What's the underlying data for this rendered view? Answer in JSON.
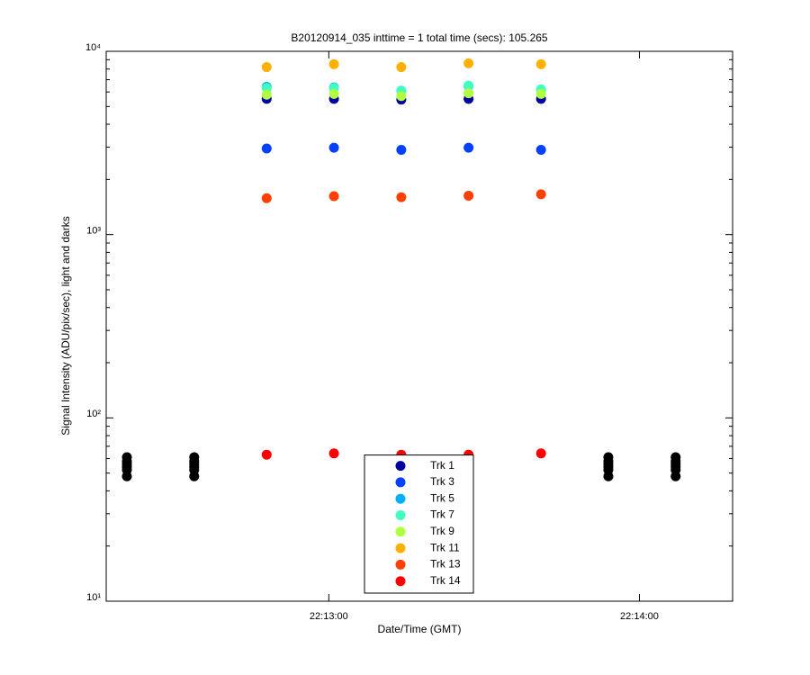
{
  "chart_data": {
    "type": "scatter",
    "title": "B20120914_035 inttime = 1 total time (secs): 105.265",
    "x_label": "Date/Time (GMT)",
    "y_label": "Signal Intensity (ADU/pix/sec), light and darks",
    "xlim": [
      "22:12:17",
      "22:14:18"
    ],
    "xticks": [
      "22:13:00",
      "22:14:00"
    ],
    "ylim": [
      10,
      10000
    ],
    "yticks": [
      {
        "value": 10,
        "label": "10¹"
      },
      {
        "value": 100,
        "label": "10²"
      },
      {
        "value": 1000,
        "label": "10³"
      },
      {
        "value": 10000,
        "label": "10⁴"
      }
    ],
    "log_y": true,
    "legend": "lower center",
    "series": [
      {
        "color": "#000000",
        "x": [
          "22:12:21",
          "22:12:21",
          "22:12:21",
          "22:12:21",
          "22:12:21",
          "22:12:21",
          "22:12:34",
          "22:12:34",
          "22:12:34",
          "22:12:34",
          "22:12:34",
          "22:12:34",
          "22:13:54",
          "22:13:54",
          "22:13:54",
          "22:13:54",
          "22:13:54",
          "22:13:54",
          "22:14:07",
          "22:14:07",
          "22:14:07",
          "22:14:07",
          "22:14:07",
          "22:14:07"
        ],
        "values": [
          61,
          58,
          56,
          54,
          52,
          48,
          61,
          58,
          56,
          54,
          52,
          48,
          61,
          58,
          56,
          54,
          52,
          48,
          61,
          58,
          56,
          54,
          52,
          48
        ]
      },
      {
        "name": "Trk 1",
        "color": "#0000a0",
        "x": [
          "22:12:48",
          "22:13:01",
          "22:13:14",
          "22:13:27",
          "22:13:41"
        ],
        "values": [
          5500,
          5500,
          5450,
          5500,
          5500
        ]
      },
      {
        "name": "Trk 3",
        "color": "#0040ff",
        "x": [
          "22:12:48",
          "22:13:01",
          "22:13:14",
          "22:13:27",
          "22:13:41"
        ],
        "values": [
          2950,
          2980,
          2900,
          2980,
          2900
        ]
      },
      {
        "name": "Trk 5",
        "color": "#00b0ff",
        "x": [
          "22:12:48",
          "22:13:01",
          "22:13:14",
          "22:13:27",
          "22:13:41"
        ],
        "values": [
          6400,
          6350,
          6100,
          6450,
          6150
        ]
      },
      {
        "name": "Trk 7",
        "color": "#40ffc0",
        "x": [
          "22:12:48",
          "22:13:01",
          "22:13:14",
          "22:13:27",
          "22:13:41"
        ],
        "values": [
          6300,
          6300,
          6100,
          6500,
          6200
        ]
      },
      {
        "name": "Trk 9",
        "color": "#b0ff40",
        "x": [
          "22:12:48",
          "22:13:01",
          "22:13:14",
          "22:13:27",
          "22:13:41"
        ],
        "values": [
          5800,
          5850,
          5700,
          5900,
          5850
        ]
      },
      {
        "name": "Trk 11",
        "color": "#ffb000",
        "x": [
          "22:12:48",
          "22:13:01",
          "22:13:14",
          "22:13:27",
          "22:13:41"
        ],
        "values": [
          8200,
          8500,
          8200,
          8600,
          8500
        ]
      },
      {
        "name": "Trk 13",
        "color": "#ff4000",
        "x": [
          "22:12:48",
          "22:13:01",
          "22:13:14",
          "22:13:27",
          "22:13:41"
        ],
        "values": [
          1580,
          1620,
          1600,
          1630,
          1660
        ]
      },
      {
        "name": "Trk 14",
        "color": "#ff0000",
        "x": [
          "22:12:48",
          "22:13:01",
          "22:13:14",
          "22:13:27",
          "22:13:41"
        ],
        "values": [
          63,
          64,
          63,
          63,
          64
        ]
      }
    ]
  }
}
